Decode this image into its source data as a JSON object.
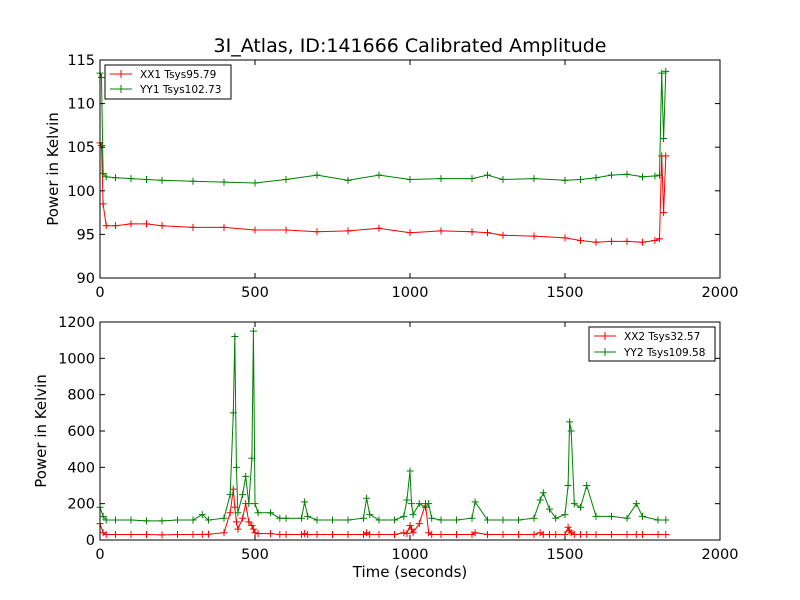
{
  "chart_data": [
    {
      "type": "line",
      "title": "3I_Atlas, ID:141666 Calibrated Amplitude",
      "xlabel": "",
      "ylabel": "Power in Kelvin",
      "xlim": [
        0,
        2000
      ],
      "ylim": [
        90,
        115
      ],
      "xticks": [
        "0",
        "500",
        "1000",
        "1500",
        "2000"
      ],
      "yticks": [
        "90",
        "95",
        "100",
        "105",
        "110",
        "115"
      ],
      "legend_position": "top-left",
      "grid": false,
      "x": [
        0,
        5,
        10,
        20,
        50,
        100,
        150,
        200,
        300,
        400,
        500,
        600,
        700,
        800,
        900,
        1000,
        1100,
        1200,
        1250,
        1300,
        1400,
        1500,
        1550,
        1600,
        1650,
        1700,
        1750,
        1790,
        1805,
        1812,
        1818,
        1825
      ],
      "series": [
        {
          "name": "XX1 Tsys95.79",
          "color": "#ff0000",
          "values": [
            105.5,
            105.2,
            98.5,
            96.0,
            96.0,
            96.2,
            96.2,
            96.0,
            95.8,
            95.8,
            95.5,
            95.5,
            95.3,
            95.4,
            95.7,
            95.2,
            95.4,
            95.3,
            95.2,
            94.9,
            94.8,
            94.6,
            94.3,
            94.1,
            94.2,
            94.2,
            94.1,
            94.3,
            94.5,
            104.0,
            97.5,
            104.0
          ]
        },
        {
          "name": "YY1 Tsys102.73",
          "color": "#008000",
          "values": [
            113.5,
            113.0,
            102.0,
            101.6,
            101.5,
            101.4,
            101.3,
            101.2,
            101.1,
            101.0,
            100.9,
            101.3,
            101.8,
            101.2,
            101.8,
            101.3,
            101.4,
            101.4,
            101.8,
            101.3,
            101.4,
            101.2,
            101.3,
            101.5,
            101.8,
            101.9,
            101.6,
            101.7,
            101.8,
            113.5,
            106.0,
            113.7
          ]
        }
      ]
    },
    {
      "type": "line",
      "title": "",
      "xlabel": "Time (seconds)",
      "ylabel": "Power in Kelvin",
      "xlim": [
        0,
        2000
      ],
      "ylim": [
        0,
        1200
      ],
      "xticks": [
        "0",
        "500",
        "1000",
        "1500",
        "2000"
      ],
      "yticks": [
        "0",
        "200",
        "400",
        "600",
        "800",
        "1000",
        "1200"
      ],
      "legend_position": "top-right",
      "grid": false,
      "x": [
        0,
        10,
        20,
        50,
        100,
        150,
        200,
        250,
        300,
        330,
        350,
        400,
        420,
        430,
        435,
        440,
        445,
        460,
        470,
        480,
        490,
        495,
        500,
        510,
        550,
        580,
        600,
        650,
        660,
        670,
        700,
        750,
        800,
        850,
        860,
        870,
        900,
        950,
        980,
        990,
        1000,
        1005,
        1010,
        1030,
        1050,
        1060,
        1070,
        1100,
        1150,
        1200,
        1210,
        1250,
        1300,
        1350,
        1400,
        1420,
        1430,
        1450,
        1470,
        1500,
        1510,
        1515,
        1520,
        1530,
        1550,
        1570,
        1600,
        1650,
        1700,
        1730,
        1750,
        1800,
        1825
      ],
      "series": [
        {
          "name": "XX2 Tsys32.57",
          "color": "#ff0000",
          "values": [
            90,
            40,
            30,
            30,
            30,
            30,
            28,
            30,
            30,
            30,
            32,
            40,
            150,
            280,
            180,
            100,
            60,
            120,
            200,
            100,
            80,
            60,
            40,
            35,
            35,
            30,
            30,
            30,
            35,
            30,
            30,
            30,
            30,
            30,
            40,
            30,
            30,
            30,
            40,
            35,
            80,
            60,
            40,
            90,
            200,
            40,
            30,
            30,
            30,
            30,
            40,
            30,
            30,
            30,
            30,
            40,
            30,
            30,
            30,
            30,
            70,
            50,
            40,
            30,
            30,
            30,
            30,
            30,
            30,
            30,
            30,
            30,
            30
          ]
        },
        {
          "name": "YY2 Tsys109.58",
          "color": "#008000",
          "values": [
            180,
            130,
            110,
            110,
            110,
            105,
            105,
            110,
            110,
            140,
            110,
            120,
            250,
            700,
            1120,
            400,
            150,
            250,
            350,
            200,
            450,
            1150,
            200,
            150,
            150,
            120,
            120,
            120,
            210,
            130,
            110,
            110,
            110,
            120,
            230,
            140,
            110,
            110,
            130,
            220,
            380,
            200,
            140,
            200,
            180,
            200,
            120,
            110,
            110,
            120,
            210,
            110,
            110,
            110,
            120,
            220,
            260,
            170,
            120,
            140,
            300,
            650,
            600,
            200,
            180,
            300,
            130,
            130,
            120,
            200,
            130,
            110,
            110
          ]
        }
      ]
    }
  ]
}
